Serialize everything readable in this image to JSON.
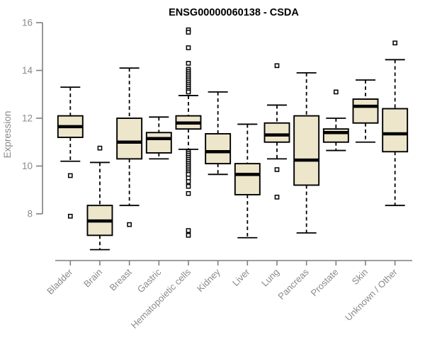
{
  "chart_data": {
    "type": "box",
    "title": "ENSG00000060138 - CSDA",
    "ylabel": "Expression",
    "xlabel": "",
    "ylim": [
      8,
      16
    ],
    "yticks": [
      8,
      10,
      12,
      14,
      16
    ],
    "grid": false,
    "legend": false,
    "categories": [
      "Bladder",
      "Brain",
      "Breast",
      "Gastric",
      "Hematopoietic cells",
      "Kidney",
      "Liver",
      "Lung",
      "Pancreas",
      "Prostate",
      "Skin",
      "Unknown / Other"
    ],
    "series": [
      {
        "name": "Bladder",
        "whisker_low": 10.2,
        "q1": 11.2,
        "median": 11.65,
        "q3": 12.1,
        "whisker_high": 13.3,
        "outliers": [
          9.6,
          7.9
        ]
      },
      {
        "name": "Brain",
        "whisker_low": 6.5,
        "q1": 7.1,
        "median": 7.7,
        "q3": 8.35,
        "whisker_high": 10.15,
        "outliers": [
          10.75
        ]
      },
      {
        "name": "Breast",
        "whisker_low": 8.35,
        "q1": 10.3,
        "median": 11.0,
        "q3": 12.0,
        "whisker_high": 14.1,
        "outliers": [
          7.55
        ]
      },
      {
        "name": "Gastric",
        "whisker_low": 10.3,
        "q1": 10.55,
        "median": 11.15,
        "q3": 11.4,
        "whisker_high": 12.05,
        "outliers": []
      },
      {
        "name": "Hematopoietic cells",
        "whisker_low": 10.7,
        "q1": 11.55,
        "median": 11.8,
        "q3": 12.1,
        "whisker_high": 12.95,
        "outliers": [
          15.7,
          15.6,
          14.95,
          14.3,
          14.05,
          13.97,
          13.89,
          13.81,
          13.73,
          13.65,
          13.57,
          13.49,
          13.41,
          13.33,
          13.25,
          13.17,
          13.1,
          10.6,
          10.52,
          10.44,
          10.36,
          10.28,
          10.2,
          10.12,
          10.04,
          9.96,
          9.88,
          9.8,
          9.72,
          9.65,
          9.5,
          9.35,
          9.15,
          8.85,
          7.3,
          7.1
        ]
      },
      {
        "name": "Kidney",
        "whisker_low": 9.65,
        "q1": 10.1,
        "median": 10.6,
        "q3": 11.35,
        "whisker_high": 13.1,
        "outliers": []
      },
      {
        "name": "Liver",
        "whisker_low": 7.0,
        "q1": 8.8,
        "median": 9.65,
        "q3": 10.1,
        "whisker_high": 11.75,
        "outliers": []
      },
      {
        "name": "Lung",
        "whisker_low": 10.3,
        "q1": 11.0,
        "median": 11.3,
        "q3": 11.8,
        "whisker_high": 12.55,
        "outliers": [
          14.2,
          9.85,
          8.7
        ]
      },
      {
        "name": "Pancreas",
        "whisker_low": 7.2,
        "q1": 9.2,
        "median": 10.25,
        "q3": 12.1,
        "whisker_high": 13.9,
        "outliers": []
      },
      {
        "name": "Prostate",
        "whisker_low": 10.65,
        "q1": 11.0,
        "median": 11.4,
        "q3": 11.55,
        "whisker_high": 12.0,
        "outliers": [
          13.1
        ]
      },
      {
        "name": "Skin",
        "whisker_low": 11.0,
        "q1": 11.8,
        "median": 12.5,
        "q3": 12.8,
        "whisker_high": 13.6,
        "outliers": []
      },
      {
        "name": "Unknown / Other",
        "whisker_low": 8.35,
        "q1": 10.6,
        "median": 11.35,
        "q3": 12.4,
        "whisker_high": 14.45,
        "outliers": [
          15.15
        ]
      }
    ],
    "colors": {
      "box_fill": "#EDE6CB",
      "box_stroke": "#000000",
      "median": "#000000",
      "whisker": "#000000",
      "outlier_fill": "#ffffff",
      "axis": "#7f7f7f",
      "tick_label": "#8a8a8e",
      "title": "#000000",
      "background": "#ffffff"
    }
  }
}
